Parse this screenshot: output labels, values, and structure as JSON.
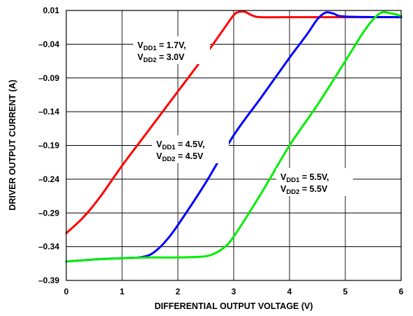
{
  "chart_data": {
    "type": "line",
    "title": "",
    "xlabel": "DIFFERENTIAL OUTPUT VOLTAGE (V)",
    "ylabel": "DRIVER OUTPUT CURRENT (A)",
    "xlim": [
      0,
      6
    ],
    "ylim": [
      -0.39,
      0.01
    ],
    "xticks": [
      0,
      1,
      2,
      3,
      4,
      5,
      6
    ],
    "yticks": [
      0.01,
      -0.04,
      -0.09,
      -0.14,
      -0.19,
      -0.24,
      -0.29,
      -0.34,
      -0.39
    ],
    "xtick_labels": [
      "0",
      "1",
      "2",
      "3",
      "4",
      "5",
      "6"
    ],
    "ytick_labels": [
      "0.01",
      "–0.04",
      "–0.09",
      "–0.14",
      "–0.19",
      "–0.24",
      "–0.29",
      "–0.34",
      "–0.39"
    ],
    "grid": true,
    "series": [
      {
        "color": "#ff0000",
        "label_line1": {
          "v": "V",
          "sub": "DD1",
          "rest": " = 1.7V,"
        },
        "label_line2": {
          "v": "V",
          "sub": "DD2",
          "rest": " = 3.0V"
        },
        "x": [
          0,
          0.3,
          0.6,
          1.0,
          1.5,
          2.0,
          2.5,
          2.8,
          3.0,
          3.1,
          3.2,
          3.35,
          3.5,
          4.0,
          5.0,
          6.0
        ],
        "y": [
          -0.32,
          -0.297,
          -0.267,
          -0.22,
          -0.165,
          -0.11,
          -0.055,
          -0.02,
          0.003,
          0.008,
          0.008,
          0.002,
          0.0,
          0.0,
          0.0,
          0.0
        ]
      },
      {
        "color": "#0000ff",
        "label_line1": {
          "v": "V",
          "sub": "DD1",
          "rest": " = 4.5V,"
        },
        "label_line2": {
          "v": "V",
          "sub": "DD2",
          "rest": " = 4.5V"
        },
        "x": [
          0,
          0.5,
          1.0,
          1.3,
          1.5,
          1.65,
          1.8,
          2.0,
          2.5,
          3.0,
          3.5,
          4.0,
          4.3,
          4.5,
          4.65,
          4.8,
          5.0,
          6.0
        ],
        "y": [
          -0.362,
          -0.359,
          -0.357,
          -0.356,
          -0.352,
          -0.343,
          -0.33,
          -0.308,
          -0.245,
          -0.175,
          -0.118,
          -0.06,
          -0.027,
          -0.003,
          0.007,
          0.005,
          0.001,
          0.0
        ]
      },
      {
        "color": "#00ee00",
        "label_line1": {
          "v": "V",
          "sub": "DD1",
          "rest": " = 5.5V,"
        },
        "label_line2": {
          "v": "V",
          "sub": "DD2",
          "rest": " = 5.5V"
        },
        "x": [
          0,
          0.5,
          1.0,
          1.5,
          2.0,
          2.4,
          2.6,
          2.8,
          3.0,
          3.5,
          4.0,
          4.5,
          5.0,
          5.3,
          5.5,
          5.65,
          5.8,
          6.0
        ],
        "y": [
          -0.362,
          -0.359,
          -0.357,
          -0.356,
          -0.356,
          -0.355,
          -0.352,
          -0.343,
          -0.325,
          -0.26,
          -0.19,
          -0.13,
          -0.065,
          -0.025,
          -0.003,
          0.007,
          0.006,
          0.002
        ]
      }
    ]
  }
}
